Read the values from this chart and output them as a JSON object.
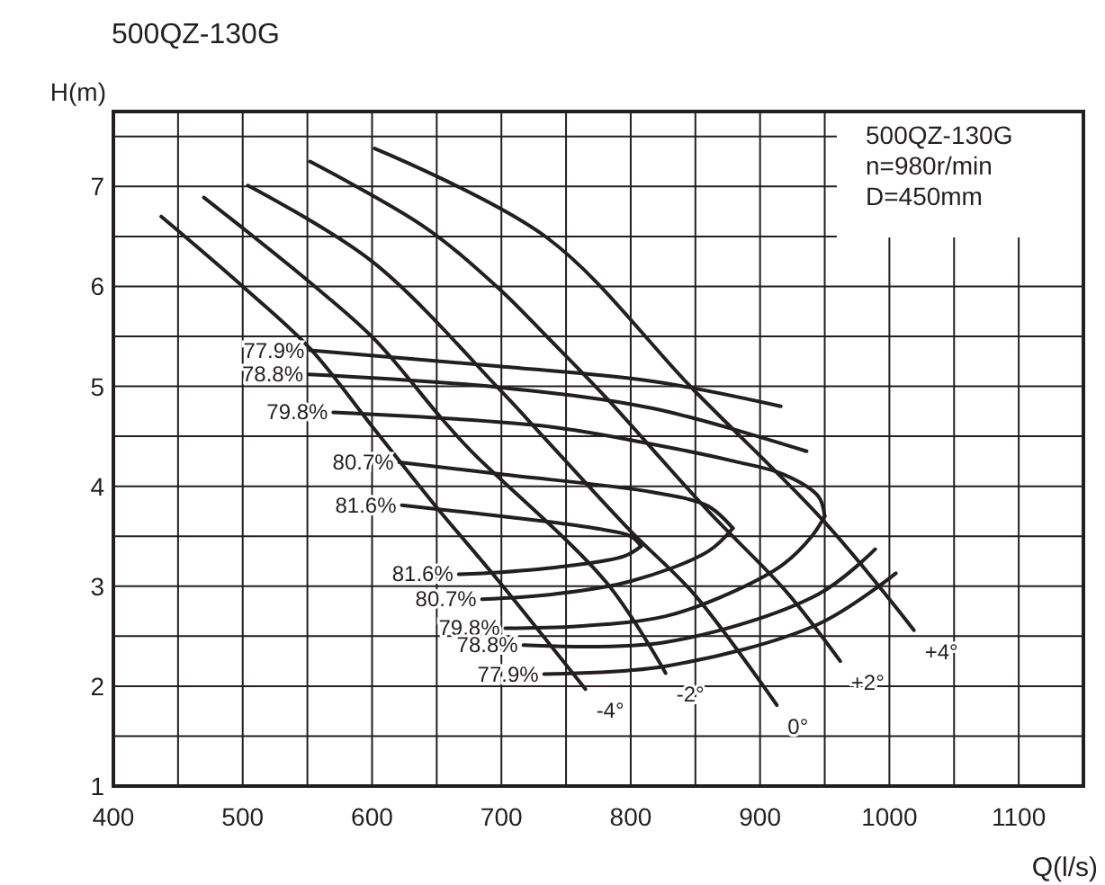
{
  "chart_data": {
    "type": "line",
    "title": "500QZ-130G",
    "xlabel": "Q(l/s)",
    "ylabel": "H(m)",
    "annotations": [
      "500QZ-130G",
      "n=980r/min",
      "D=450mm"
    ],
    "xlim": [
      400,
      1150
    ],
    "ylim": [
      1,
      7.75
    ],
    "xticks": [
      400,
      {
        "value": 450,
        "label": null
      },
      500,
      {
        "value": 550,
        "label": null
      },
      600,
      {
        "value": 650,
        "label": null
      },
      700,
      {
        "value": 750,
        "label": null
      },
      800,
      {
        "value": 850,
        "label": null
      },
      900,
      {
        "value": 950,
        "label": null
      },
      1000,
      {
        "value": 1050,
        "label": null
      },
      1100,
      {
        "value": 1150,
        "label": null
      }
    ],
    "yticks": [
      1,
      {
        "value": 1.5,
        "label": null
      },
      2,
      {
        "value": 2.5,
        "label": null
      },
      3,
      {
        "value": 3.5,
        "label": null
      },
      4,
      {
        "value": 4.5,
        "label": null
      },
      5,
      {
        "value": 5.5,
        "label": null
      },
      6,
      {
        "value": 6.5,
        "label": null
      },
      7,
      {
        "value": 7.5,
        "label": null
      }
    ],
    "grid": true,
    "marker": "none",
    "line_style": "solid",
    "series": [
      {
        "name": "-4°",
        "color": "#231f20",
        "x": [
          765,
          698,
          648,
          600,
          552,
          500,
          437
        ],
        "values": [
          1.97,
          3.05,
          3.82,
          4.6,
          5.38,
          6.0,
          6.7
        ]
      },
      {
        "name": "-2°",
        "color": "#231f20",
        "x": [
          827,
          781,
          676,
          653,
          602,
          552,
          470
        ],
        "values": [
          2.13,
          3.04,
          4.36,
          4.69,
          5.47,
          6.04,
          6.89
        ]
      },
      {
        "name": "0°",
        "color": "#231f20",
        "x": [
          913,
          849,
          800,
          735,
          700,
          600,
          504
        ],
        "values": [
          1.81,
          2.92,
          3.55,
          4.46,
          4.95,
          6.25,
          7.01
        ]
      },
      {
        "name": "+2°",
        "color": "#231f20",
        "x": [
          962,
          920,
          860,
          780,
          735,
          698,
          640,
          552
        ],
        "values": [
          2.25,
          2.95,
          3.75,
          4.9,
          5.5,
          5.98,
          6.6,
          7.25
        ]
      },
      {
        "name": "+4°",
        "color": "#231f20",
        "x": [
          1019,
          950,
          849,
          735,
          602
        ],
        "values": [
          2.56,
          3.64,
          4.96,
          6.49,
          7.38
        ]
      },
      {
        "name": "77.9%",
        "color": "#231f20",
        "x": [
          552,
          698,
          817,
          916
        ],
        "values": [
          5.36,
          5.2,
          5.05,
          4.8
        ]
      },
      {
        "name": "78.8%",
        "color": "#231f20",
        "x": [
          551,
          698,
          817,
          936
        ],
        "values": [
          5.12,
          4.99,
          4.78,
          4.35
        ]
      },
      {
        "name": "79.8%",
        "color": "#231f20",
        "x": [
          570,
          735,
          817,
          880,
          918,
          945,
          950
        ],
        "values": [
          4.74,
          4.6,
          4.42,
          4.25,
          4.12,
          3.9,
          3.7
        ]
      },
      {
        "name": "80.7%",
        "color": "#231f20",
        "x": [
          621,
          700,
          817,
          860,
          879
        ],
        "values": [
          4.24,
          4.12,
          3.94,
          3.8,
          3.58
        ]
      },
      {
        "name": "81.6%",
        "color": "#231f20",
        "x": [
          623,
          700,
          772,
          800,
          808
        ],
        "values": [
          3.81,
          3.7,
          3.58,
          3.5,
          3.4
        ]
      },
      {
        "name": "81.6%",
        "color": "#231f20",
        "x": [
          667,
          700,
          750,
          795,
          808
        ],
        "values": [
          3.12,
          3.14,
          3.2,
          3.3,
          3.4
        ]
      },
      {
        "name": "80.7%",
        "color": "#231f20",
        "x": [
          685,
          740,
          800,
          860,
          879
        ],
        "values": [
          2.87,
          2.92,
          3.05,
          3.35,
          3.58
        ]
      },
      {
        "name": "79.8%",
        "color": "#231f20",
        "x": [
          703,
          760,
          827,
          880,
          918,
          940,
          950
        ],
        "values": [
          2.58,
          2.6,
          2.7,
          2.95,
          3.22,
          3.5,
          3.7
        ]
      },
      {
        "name": "78.8%",
        "color": "#231f20",
        "x": [
          717,
          827,
          945,
          989
        ],
        "values": [
          2.41,
          2.44,
          2.92,
          3.37
        ]
      },
      {
        "name": "77.9%",
        "color": "#231f20",
        "x": [
          733,
          827,
          945,
          1005
        ],
        "values": [
          2.12,
          2.2,
          2.62,
          3.13
        ]
      }
    ]
  }
}
